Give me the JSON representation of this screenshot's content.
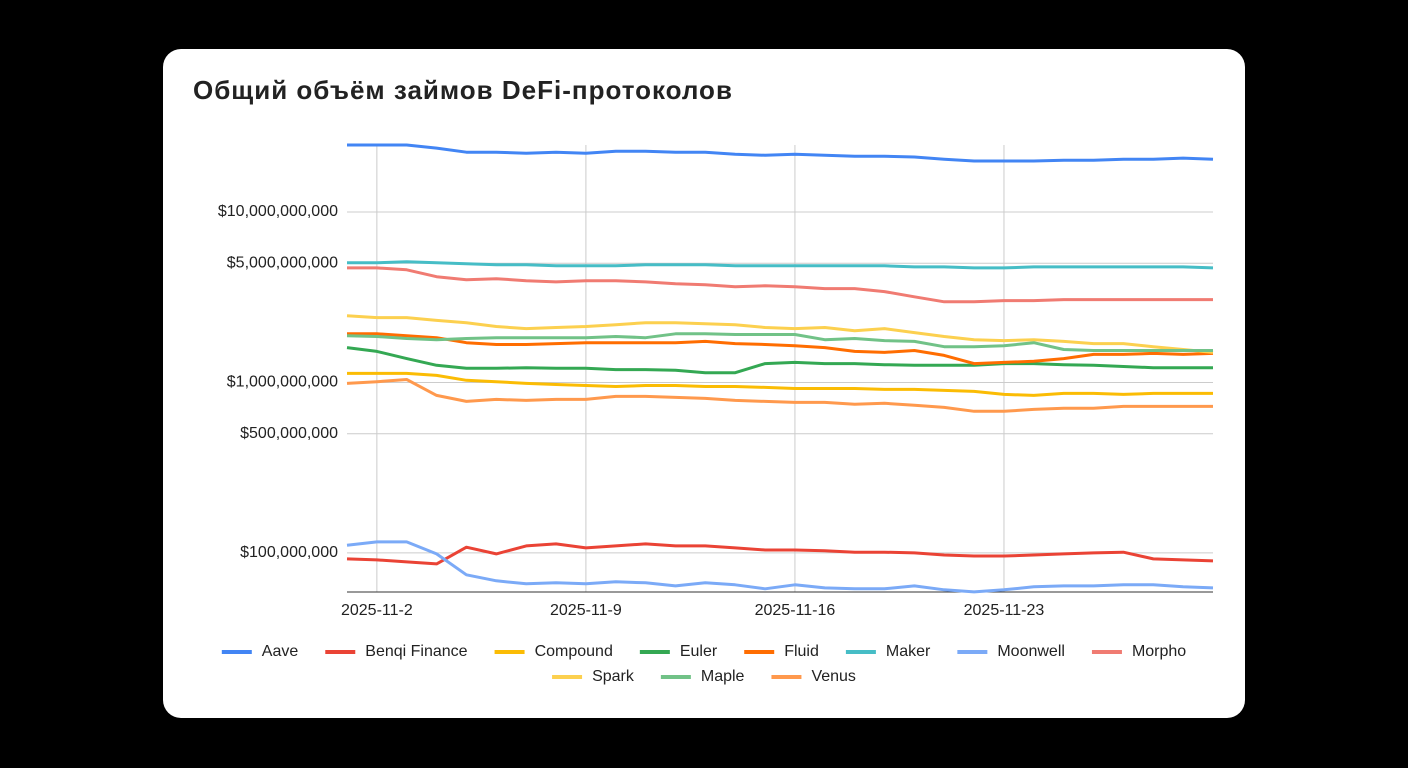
{
  "chart_data": {
    "type": "line",
    "title": "Общий объём займов DeFi-протоколов",
    "log_scale": true,
    "grid": true,
    "legend_position": "bottom",
    "categories": [
      null,
      "2025-11-2",
      null,
      null,
      null,
      null,
      null,
      null,
      "2025-11-9",
      null,
      null,
      null,
      null,
      null,
      null,
      "2025-11-16",
      null,
      null,
      null,
      null,
      null,
      null,
      "2025-11-23",
      null,
      null,
      null,
      null,
      null,
      null,
      null
    ],
    "ylim": [
      59000000,
      24700000000
    ],
    "yticks": [
      {
        "value": 100000000,
        "label": "$100,000,000"
      },
      {
        "value": 500000000,
        "label": "$500,000,000"
      },
      {
        "value": 1000000000,
        "label": "$1,000,000,000"
      },
      {
        "value": 5000000000,
        "label": "$5,000,000,000"
      },
      {
        "value": 10000000000,
        "label": "$10,000,000,000"
      }
    ],
    "series": [
      {
        "name": "Aave",
        "color": "#4285f4",
        "values": [
          24700000000.0,
          24700000000.0,
          24700000000.0,
          23700000000.0,
          22400000000.0,
          22400000000.0,
          22100000000.0,
          22400000000.0,
          22100000000.0,
          22700000000.0,
          22700000000.0,
          22400000000.0,
          22400000000.0,
          21800000000.0,
          21500000000.0,
          21800000000.0,
          21500000000.0,
          21200000000.0,
          21200000000.0,
          21000000000.0,
          20400000000.0,
          19900000000.0,
          19900000000.0,
          19900000000.0,
          20100000000.0,
          20100000000.0,
          20400000000.0,
          20400000000.0,
          20700000000.0,
          20400000000.0
        ]
      },
      {
        "name": "Benqi Finance",
        "color": "#ea4335",
        "values": [
          92300000.0,
          91000000.0,
          88600000.0,
          86200000.0,
          108000000.0,
          98700000.0,
          110000000.0,
          113000000.0,
          107000000.0,
          110000000.0,
          113000000.0,
          110000000.0,
          110000000.0,
          107000000.0,
          104000000.0,
          104000000.0,
          103000000.0,
          101000000.0,
          101000000.0,
          100000000.0,
          97300000.0,
          96000000.0,
          96000000.0,
          97300000.0,
          98700000.0,
          100000000.0,
          101000000.0,
          92300000.0,
          91000000.0,
          89800000.0
        ]
      },
      {
        "name": "Compound",
        "color": "#fbbc04",
        "values": [
          1130000000.0,
          1130000000.0,
          1130000000.0,
          1100000000.0,
          1030000000.0,
          1010000000.0,
          987000000.0,
          973000000.0,
          960000000.0,
          947000000.0,
          960000000.0,
          960000000.0,
          947000000.0,
          947000000.0,
          935000000.0,
          922000000.0,
          922000000.0,
          922000000.0,
          910000000.0,
          910000000.0,
          898000000.0,
          886000000.0,
          851000000.0,
          839000000.0,
          862000000.0,
          862000000.0,
          851000000.0,
          862000000.0,
          862000000.0,
          862000000.0
        ]
      },
      {
        "name": "Euler",
        "color": "#34a853",
        "values": [
          1600000000.0,
          1520000000.0,
          1380000000.0,
          1260000000.0,
          1210000000.0,
          1210000000.0,
          1220000000.0,
          1210000000.0,
          1210000000.0,
          1190000000.0,
          1190000000.0,
          1180000000.0,
          1140000000.0,
          1140000000.0,
          1290000000.0,
          1310000000.0,
          1290000000.0,
          1290000000.0,
          1270000000.0,
          1260000000.0,
          1260000000.0,
          1260000000.0,
          1290000000.0,
          1290000000.0,
          1270000000.0,
          1260000000.0,
          1240000000.0,
          1220000000.0,
          1220000000.0,
          1220000000.0
        ]
      },
      {
        "name": "Fluid",
        "color": "#ff6d01",
        "values": [
          1930000000.0,
          1930000000.0,
          1880000000.0,
          1830000000.0,
          1710000000.0,
          1670000000.0,
          1670000000.0,
          1690000000.0,
          1710000000.0,
          1710000000.0,
          1710000000.0,
          1710000000.0,
          1740000000.0,
          1690000000.0,
          1670000000.0,
          1640000000.0,
          1600000000.0,
          1520000000.0,
          1500000000.0,
          1540000000.0,
          1440000000.0,
          1290000000.0,
          1310000000.0,
          1330000000.0,
          1380000000.0,
          1460000000.0,
          1460000000.0,
          1480000000.0,
          1460000000.0,
          1480000000.0
        ]
      },
      {
        "name": "Maker",
        "color": "#46bdc6",
        "values": [
          5030000000.0,
          5030000000.0,
          5100000000.0,
          5030000000.0,
          4970000000.0,
          4900000000.0,
          4900000000.0,
          4830000000.0,
          4830000000.0,
          4830000000.0,
          4900000000.0,
          4900000000.0,
          4900000000.0,
          4830000000.0,
          4830000000.0,
          4830000000.0,
          4830000000.0,
          4830000000.0,
          4830000000.0,
          4760000000.0,
          4760000000.0,
          4700000000.0,
          4700000000.0,
          4760000000.0,
          4760000000.0,
          4760000000.0,
          4760000000.0,
          4760000000.0,
          4760000000.0,
          4700000000.0
        ]
      },
      {
        "name": "Moonwell",
        "color": "#7baaf7",
        "values": [
          111000000.0,
          116000000.0,
          116000000.0,
          98700000.0,
          74400000.0,
          68600000.0,
          65900000.0,
          66800000.0,
          65900000.0,
          67700000.0,
          66800000.0,
          64100000.0,
          66800000.0,
          65000000.0,
          61600000.0,
          65000000.0,
          62400000.0,
          61600000.0,
          61600000.0,
          64100000.0,
          60800000.0,
          59100000.0,
          60800000.0,
          63300000.0,
          64100000.0,
          64100000.0,
          65000000.0,
          65000000.0,
          63300000.0,
          62400000.0
        ]
      },
      {
        "name": "Morpho",
        "color": "#f07b72",
        "values": [
          4700000000.0,
          4700000000.0,
          4580000000.0,
          4170000000.0,
          4000000000.0,
          4060000000.0,
          3950000000.0,
          3890000000.0,
          3950000000.0,
          3950000000.0,
          3890000000.0,
          3790000000.0,
          3740000000.0,
          3640000000.0,
          3690000000.0,
          3640000000.0,
          3550000000.0,
          3550000000.0,
          3410000000.0,
          3180000000.0,
          2970000000.0,
          2970000000.0,
          3020000000.0,
          3020000000.0,
          3060000000.0,
          3060000000.0,
          3060000000.0,
          3060000000.0,
          3060000000.0,
          3060000000.0
        ]
      },
      {
        "name": "Spark",
        "color": "#fcd04f",
        "values": [
          2460000000.0,
          2400000000.0,
          2400000000.0,
          2310000000.0,
          2240000000.0,
          2130000000.0,
          2070000000.0,
          2100000000.0,
          2130000000.0,
          2180000000.0,
          2240000000.0,
          2240000000.0,
          2210000000.0,
          2180000000.0,
          2100000000.0,
          2070000000.0,
          2100000000.0,
          2010000000.0,
          2070000000.0,
          1960000000.0,
          1860000000.0,
          1780000000.0,
          1760000000.0,
          1780000000.0,
          1740000000.0,
          1690000000.0,
          1690000000.0,
          1620000000.0,
          1560000000.0,
          1500000000.0
        ]
      },
      {
        "name": "Maple",
        "color": "#71c287",
        "values": [
          1880000000.0,
          1860000000.0,
          1810000000.0,
          1780000000.0,
          1810000000.0,
          1830000000.0,
          1830000000.0,
          1830000000.0,
          1830000000.0,
          1860000000.0,
          1830000000.0,
          1930000000.0,
          1930000000.0,
          1910000000.0,
          1910000000.0,
          1910000000.0,
          1780000000.0,
          1810000000.0,
          1760000000.0,
          1740000000.0,
          1620000000.0,
          1620000000.0,
          1640000000.0,
          1710000000.0,
          1560000000.0,
          1540000000.0,
          1540000000.0,
          1540000000.0,
          1540000000.0,
          1540000000.0
        ]
      },
      {
        "name": "Venus",
        "color": "#ff994d",
        "values": [
          987000000.0,
          1010000000.0,
          1040000000.0,
          839000000.0,
          774000000.0,
          795000000.0,
          785000000.0,
          795000000.0,
          795000000.0,
          828000000.0,
          828000000.0,
          817000000.0,
          806000000.0,
          785000000.0,
          774000000.0,
          764000000.0,
          764000000.0,
          744000000.0,
          754000000.0,
          734000000.0,
          714000000.0,
          677000000.0,
          677000000.0,
          695000000.0,
          705000000.0,
          705000000.0,
          724000000.0,
          724000000.0,
          724000000.0,
          724000000.0
        ]
      }
    ]
  }
}
